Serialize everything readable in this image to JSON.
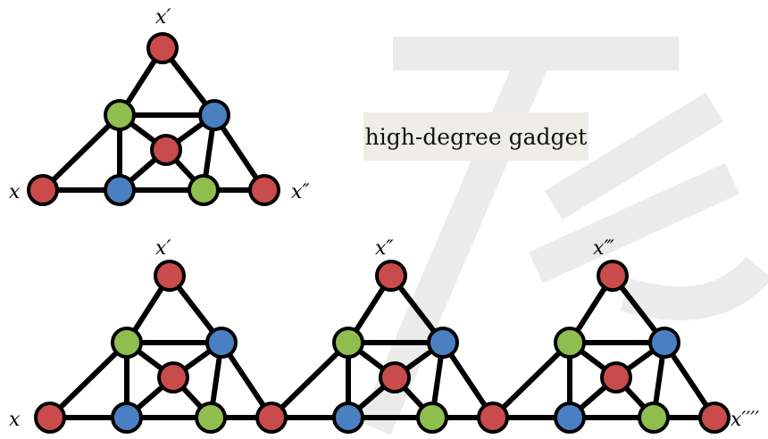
{
  "caption": "high-degree gadget",
  "colors": {
    "red": "#c94b4b",
    "green": "#8fbd4e",
    "blue": "#4a7fc1",
    "edge": "#000000",
    "caption_bg": "#eeeee6"
  },
  "top_gadget": {
    "labels": {
      "left": "x",
      "top": "x′",
      "right": "x″"
    }
  },
  "chain": {
    "gadget_count": 3,
    "labels": {
      "start": "x",
      "tops": [
        "x′",
        "x″",
        "x‴"
      ],
      "end": "x′′′′"
    }
  }
}
